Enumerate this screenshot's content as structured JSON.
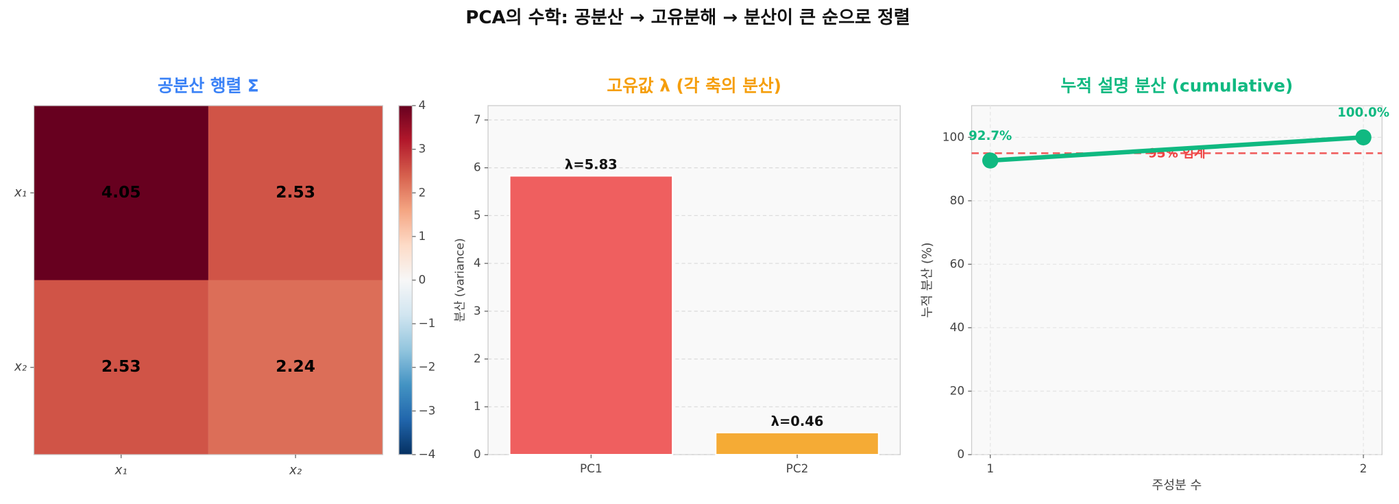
{
  "title": "PCA의 수학: 공분산 → 고유분해 → 분산이 큰 순으로 정렬",
  "chart_data": [
    {
      "type": "heatmap",
      "title": "공분산 행렬 Σ",
      "title_color": "#3b82f6",
      "x_categories": [
        "x₁",
        "x₂"
      ],
      "y_categories": [
        "x₁",
        "x₂"
      ],
      "values": [
        [
          4.05,
          2.53
        ],
        [
          2.53,
          2.24
        ]
      ],
      "colormap": "RdBu_r",
      "clim": [
        -4,
        4
      ],
      "cticks": [
        {
          "value": -4,
          "label": "−4"
        },
        {
          "value": -3,
          "label": "−3"
        },
        {
          "value": -2,
          "label": "−2"
        },
        {
          "value": -1,
          "label": "−1"
        },
        0,
        1,
        2,
        3,
        4
      ]
    },
    {
      "type": "bar",
      "title": "고유값 λ (각 축의 분산)",
      "title_color": "#f59e0b",
      "ylabel": "분산 (variance)",
      "categories": [
        "PC1",
        "PC2"
      ],
      "values": [
        5.83,
        0.46
      ],
      "value_labels": [
        "λ=5.83",
        "λ=0.46"
      ],
      "colors": [
        "#ef5f5f",
        "#f5ab35"
      ],
      "ylim": [
        0,
        7.3
      ],
      "yticks": [
        0,
        1,
        2,
        3,
        4,
        5,
        6,
        7
      ],
      "grid": true
    },
    {
      "type": "line",
      "title": "누적 설명 분산 (cumulative)",
      "title_color": "#10b981",
      "xlabel": "주성분 수",
      "ylabel": "누적 분산 (%)",
      "x": [
        1,
        2
      ],
      "values": [
        92.7,
        100.0
      ],
      "value_labels": [
        "92.7%",
        "100.0%"
      ],
      "color": "#10b981",
      "xlim": [
        0.95,
        2.05
      ],
      "xticks": [
        1,
        2
      ],
      "ylim": [
        0,
        110
      ],
      "yticks": [
        0,
        20,
        40,
        60,
        80,
        100
      ],
      "threshold": {
        "value": 95,
        "label": "95% 임계",
        "color": "#ef4444"
      },
      "grid": true
    }
  ]
}
